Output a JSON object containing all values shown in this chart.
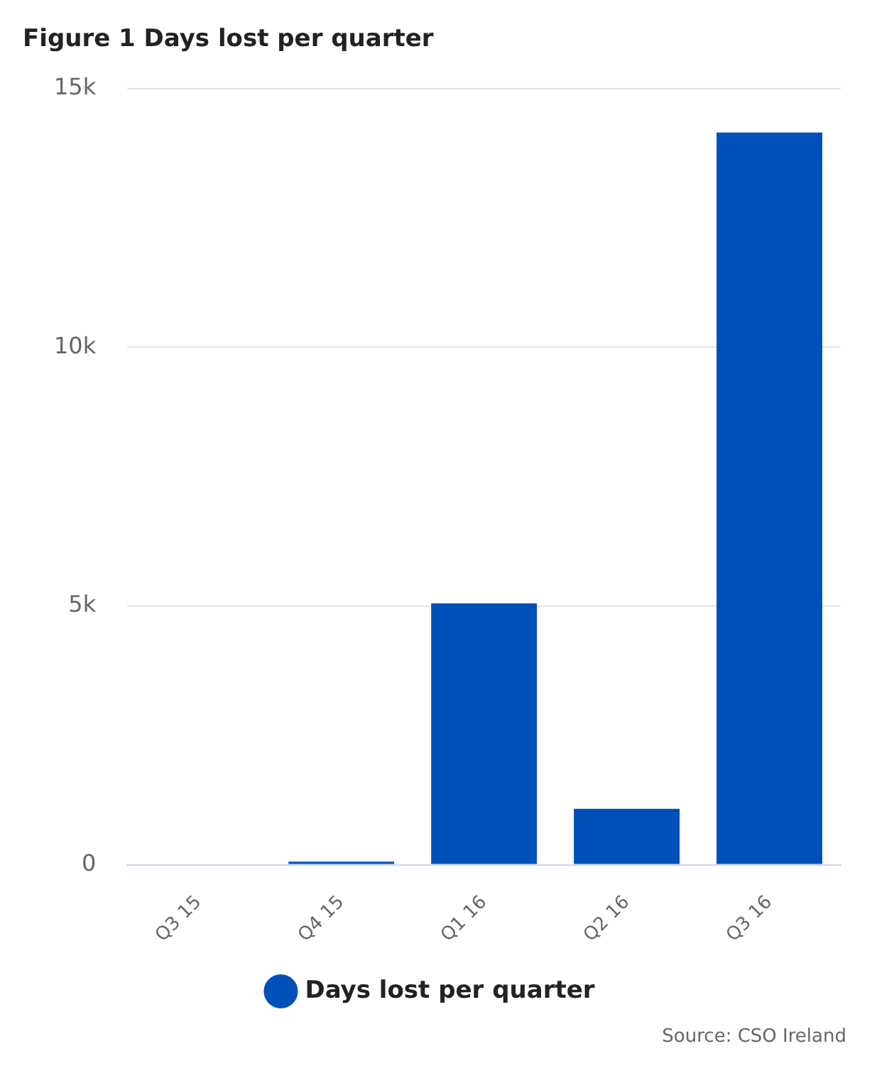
{
  "chart_data": {
    "type": "bar",
    "title": "Figure 1 Days lost per quarter",
    "categories": [
      "Q3 15",
      "Q4 15",
      "Q1 16",
      "Q2 16",
      "Q3 16"
    ],
    "series": [
      {
        "name": "Days lost per quarter",
        "color": "#0050b9",
        "values": [
          0,
          60,
          5050,
          1080,
          14150
        ]
      }
    ],
    "ylim": [
      0,
      15000
    ],
    "yticks": [
      {
        "value": 0,
        "label": "0"
      },
      {
        "value": 5000,
        "label": "5k"
      },
      {
        "value": 10000,
        "label": "10k"
      },
      {
        "value": 15000,
        "label": "15k"
      }
    ],
    "grid": "y",
    "legend": "bottom",
    "annotations": [
      "Source: CSO Ireland"
    ]
  }
}
